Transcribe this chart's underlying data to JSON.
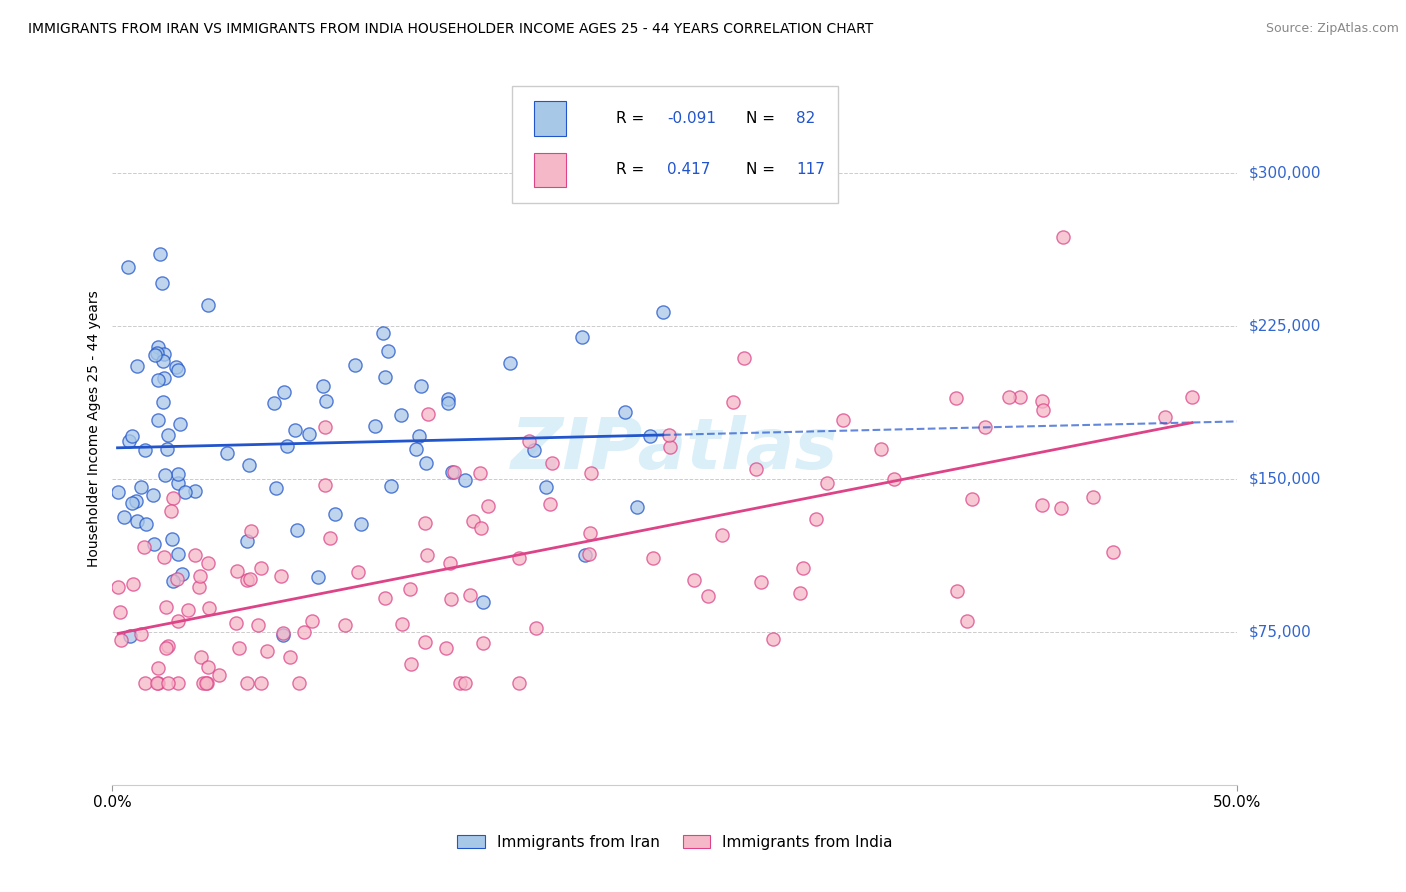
{
  "title": "IMMIGRANTS FROM IRAN VS IMMIGRANTS FROM INDIA HOUSEHOLDER INCOME AGES 25 - 44 YEARS CORRELATION CHART",
  "source": "Source: ZipAtlas.com",
  "ylabel": "Householder Income Ages 25 - 44 years",
  "y_ticks": [
    75000,
    150000,
    225000,
    300000
  ],
  "y_tick_labels": [
    "$75,000",
    "$150,000",
    "$225,000",
    "$300,000"
  ],
  "xlim": [
    0.0,
    50.0
  ],
  "ylim": [
    0,
    350000
  ],
  "iran_color": "#a8c8e8",
  "india_color": "#f5b8c8",
  "iran_line_color": "#2255cc",
  "india_line_color": "#dd4488",
  "iran_R": -0.091,
  "iran_N": 82,
  "india_R": 0.417,
  "india_N": 117,
  "watermark": "ZIPatlas",
  "background_color": "#ffffff",
  "grid_color": "#cccccc",
  "tick_label_color": "#3366cc"
}
